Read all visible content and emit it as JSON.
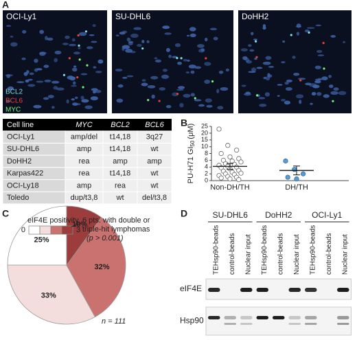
{
  "panels": [
    "A",
    "B",
    "C",
    "D"
  ],
  "images": [
    {
      "title": "OCI-Ly1"
    },
    {
      "title": "SU-DHL6"
    },
    {
      "title": "DoHH2"
    }
  ],
  "probe_legend": [
    {
      "name": "BCL2",
      "color": "#7fdfe6"
    },
    {
      "name": "BCL6",
      "color": "#e8413a"
    },
    {
      "name": "MYC",
      "color": "#7cf07a"
    }
  ],
  "table": {
    "header": [
      "Cell line",
      "MYC",
      "BCL2",
      "BCL6"
    ],
    "rows": [
      [
        "OCI-Ly1",
        "amp/del",
        "t14,18",
        "3q27"
      ],
      [
        "SU-DHL6",
        "amp",
        "t14,18",
        "wt"
      ],
      [
        "DoHH2",
        "rea",
        "amp",
        "amp"
      ],
      [
        "Karpas422",
        "rea",
        "t14,18",
        "wt"
      ],
      [
        "OCI-Ly18",
        "amp",
        "rea",
        "wt"
      ],
      [
        "Toledo",
        "dup/t3,8",
        "wt",
        "del/t3,8"
      ]
    ]
  },
  "chart_data": [
    {
      "type": "scatter",
      "ylabel": "PU-H71 GI",
      "ylabel_sub": "50",
      "ylabel_unit": "(μM)",
      "categories": [
        "Non-DH/TH",
        "DH/TH"
      ],
      "series": [
        {
          "color": "#ffffff",
          "values": [
            23,
            11,
            9,
            8,
            7,
            6.5,
            6,
            5.8,
            5.5,
            5,
            4.8,
            4.5,
            4.2,
            4,
            3.8,
            3.5,
            3,
            2.8,
            2.5,
            2.2,
            2,
            1.8,
            1.5,
            1.2,
            1,
            0.8,
            0.5,
            0.3
          ]
        },
        {
          "color": "#5b9bd5",
          "values": [
            5.8,
            3.3,
            2,
            1,
            0.5
          ]
        }
      ],
      "means": [
        4.2,
        3
      ],
      "errors": [
        0.9,
        1.3
      ],
      "ylim": [
        0,
        25
      ],
      "yticks": [
        0,
        2,
        4,
        6,
        8,
        10,
        15,
        20,
        25
      ]
    },
    {
      "type": "pie",
      "legend_title": "eIF4E positivity",
      "categories": [
        "0",
        null,
        null,
        "3"
      ],
      "colors": [
        "#ffffff",
        "#f3dddd",
        "#c9726f",
        "#9c3c3c"
      ],
      "values": [
        25,
        33,
        32,
        10
      ],
      "value_labels": [
        "25%",
        "33%",
        "32%",
        "10%"
      ],
      "annotation": [
        "6 pts. with double or",
        "triple-hit lymphomas",
        "(p > 0.001)"
      ],
      "note": "n = 111"
    }
  ],
  "blot": {
    "groups": [
      "SU-DHL6",
      "DoHH2",
      "OCI-Ly1"
    ],
    "lanes": [
      "TEHsp90-beads",
      "control-beads",
      "Nuclear input"
    ],
    "rows": [
      "eIF4E",
      "Hsp90"
    ]
  }
}
